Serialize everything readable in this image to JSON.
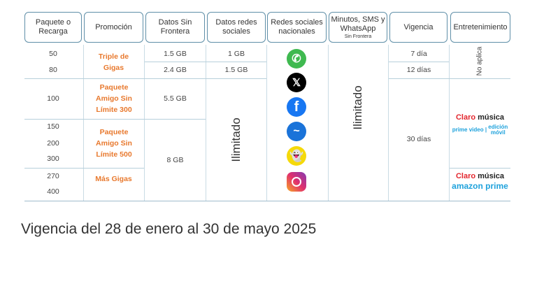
{
  "headers": {
    "paquete": "Paquete o Recarga",
    "promocion": "Promoción",
    "datos_sf": "Datos Sin Frontera",
    "datos_rs": "Datos redes sociales",
    "redes": "Redes sociales nacionales",
    "minutos": "Minutos, SMS y WhatsApp",
    "minutos_sub": "Sin Frontera",
    "vigencia": "Vigencia",
    "entretenimiento": "Entretenimiento"
  },
  "paquetes": [
    "50",
    "80",
    "100",
    "150",
    "200",
    "300",
    "270",
    "400"
  ],
  "promos": [
    "Triple de Gigas",
    "Paquete Amigo Sin Límite 300",
    "Paquete Amigo Sin Límite 500",
    "Más Gigas"
  ],
  "datos_sf": [
    "1.5 GB",
    "2.4 GB",
    "5.5 GB",
    "8 GB"
  ],
  "datos_rs": [
    "1 GB",
    "1.5 GB",
    "Ilimitado"
  ],
  "minutos": "Ilimitado",
  "vigencia": [
    "7 día",
    "12 días",
    "30 días"
  ],
  "entretenimiento": {
    "no_aplica": "No aplica",
    "claro": "Claro",
    "musica": "música",
    "prime_video": "prime video",
    "edicion": "edición móvil",
    "amazon_prime": "amazon prime"
  },
  "social_icons": [
    "whatsapp-icon",
    "x-icon",
    "facebook-icon",
    "messenger-icon",
    "snapchat-icon",
    "instagram-icon"
  ],
  "footer": "Vigencia del 28 de enero al 30 de mayo 2025"
}
